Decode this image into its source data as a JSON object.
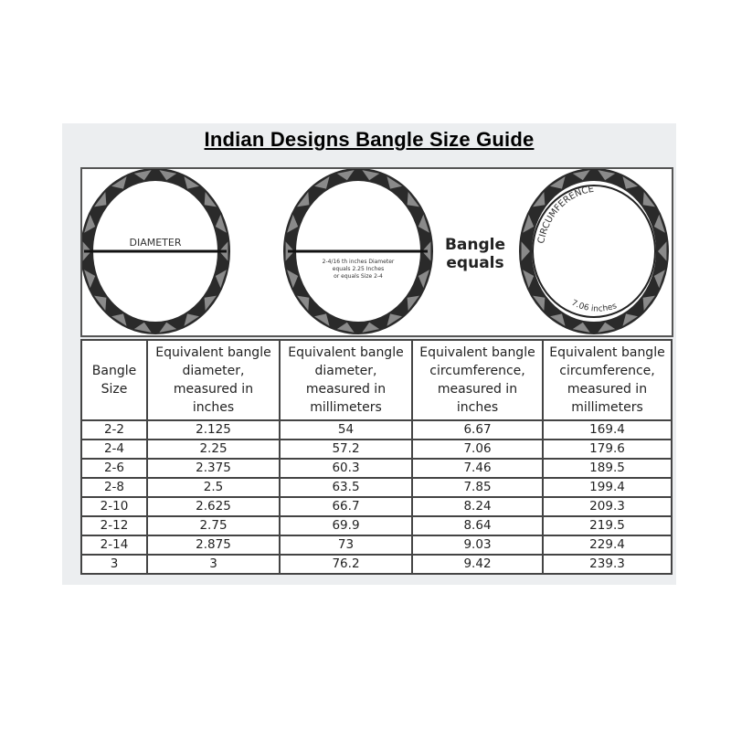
{
  "title": "Indian Designs Bangle Size Guide",
  "figure": {
    "diameter_label": "DIAMETER",
    "example_note": [
      "2-4/16 th inches Diameter",
      "equals 2.25 Inches",
      "or equals Size 2-4"
    ],
    "equals_text": [
      "Bangle",
      "equals"
    ],
    "circumference_label": "CIRCUMFERENCE",
    "circumference_value": "7.06 inches"
  },
  "table": {
    "headers": [
      [
        "Bangle",
        "Size"
      ],
      [
        "Equivalent bangle",
        "diameter,",
        "measured in",
        "inches"
      ],
      [
        "Equivalent bangle",
        "diameter,",
        "measured in",
        "millimeters"
      ],
      [
        "Equivalent bangle",
        "circumference,",
        "measured in",
        "inches"
      ],
      [
        "Equivalent bangle",
        "circumference,",
        "measured in",
        "millimeters"
      ]
    ],
    "rows": [
      [
        "2-2",
        "2.125",
        "54",
        "6.67",
        "169.4"
      ],
      [
        "2-4",
        "2.25",
        "57.2",
        "7.06",
        "179.6"
      ],
      [
        "2-6",
        "2.375",
        "60.3",
        "7.46",
        "189.5"
      ],
      [
        "2-8",
        "2.5",
        "63.5",
        "7.85",
        "199.4"
      ],
      [
        "2-10",
        "2.625",
        "66.7",
        "8.24",
        "209.3"
      ],
      [
        "2-12",
        "2.75",
        "69.9",
        "8.64",
        "219.5"
      ],
      [
        "2-14",
        "2.875",
        "73",
        "9.03",
        "229.4"
      ],
      [
        "3",
        "3",
        "76.2",
        "9.42",
        "239.3"
      ]
    ]
  }
}
